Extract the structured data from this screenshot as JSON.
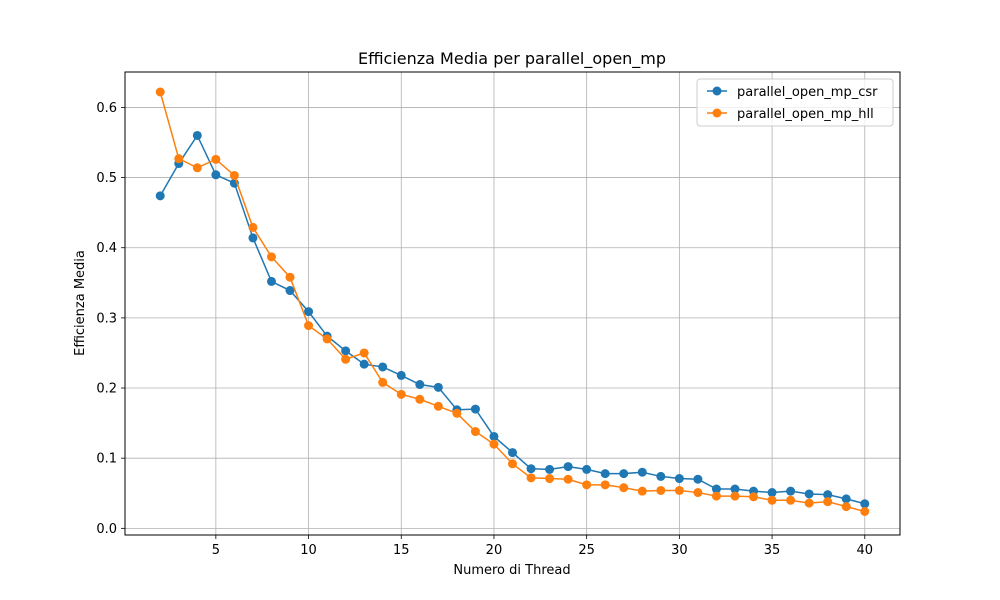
{
  "chart_data": {
    "type": "line",
    "title": "Efficienza Media per parallel_open_mp",
    "xlabel": "Numero di Thread",
    "ylabel": "Efficienza Media",
    "xlim": [
      0.1,
      41.9
    ],
    "ylim": [
      -0.0095,
      0.6505
    ],
    "xticks": [
      5,
      10,
      15,
      20,
      25,
      30,
      35,
      40
    ],
    "yticks": [
      0.0,
      0.1,
      0.2,
      0.3,
      0.4,
      0.5,
      0.6
    ],
    "xtick_labels": [
      "5",
      "10",
      "15",
      "20",
      "25",
      "30",
      "35",
      "40"
    ],
    "ytick_labels": [
      "0.0",
      "0.1",
      "0.2",
      "0.3",
      "0.4",
      "0.5",
      "0.6"
    ],
    "grid": true,
    "legend_position": "top-right",
    "x": [
      2,
      3,
      4,
      5,
      6,
      7,
      8,
      9,
      10,
      11,
      12,
      13,
      14,
      15,
      16,
      17,
      18,
      19,
      20,
      21,
      22,
      23,
      24,
      25,
      26,
      27,
      28,
      29,
      30,
      31,
      32,
      33,
      34,
      35,
      36,
      37,
      38,
      39,
      40
    ],
    "series": [
      {
        "name": "parallel_open_mp_csr",
        "color": "#1f77b4",
        "values": [
          0.474,
          0.52,
          0.56,
          0.504,
          0.492,
          0.414,
          0.352,
          0.339,
          0.309,
          0.274,
          0.253,
          0.234,
          0.23,
          0.218,
          0.205,
          0.201,
          0.169,
          0.17,
          0.131,
          0.108,
          0.085,
          0.084,
          0.088,
          0.084,
          0.078,
          0.078,
          0.08,
          0.074,
          0.071,
          0.07,
          0.056,
          0.056,
          0.053,
          0.051,
          0.053,
          0.049,
          0.048,
          0.042,
          0.035
        ]
      },
      {
        "name": "parallel_open_mp_hll",
        "color": "#ff7f0e",
        "values": [
          0.622,
          0.527,
          0.514,
          0.526,
          0.503,
          0.429,
          0.387,
          0.358,
          0.289,
          0.27,
          0.241,
          0.25,
          0.208,
          0.191,
          0.184,
          0.174,
          0.164,
          0.138,
          0.12,
          0.092,
          0.072,
          0.071,
          0.07,
          0.062,
          0.062,
          0.058,
          0.053,
          0.054,
          0.054,
          0.051,
          0.046,
          0.046,
          0.045,
          0.04,
          0.04,
          0.036,
          0.038,
          0.031,
          0.024
        ]
      }
    ]
  }
}
